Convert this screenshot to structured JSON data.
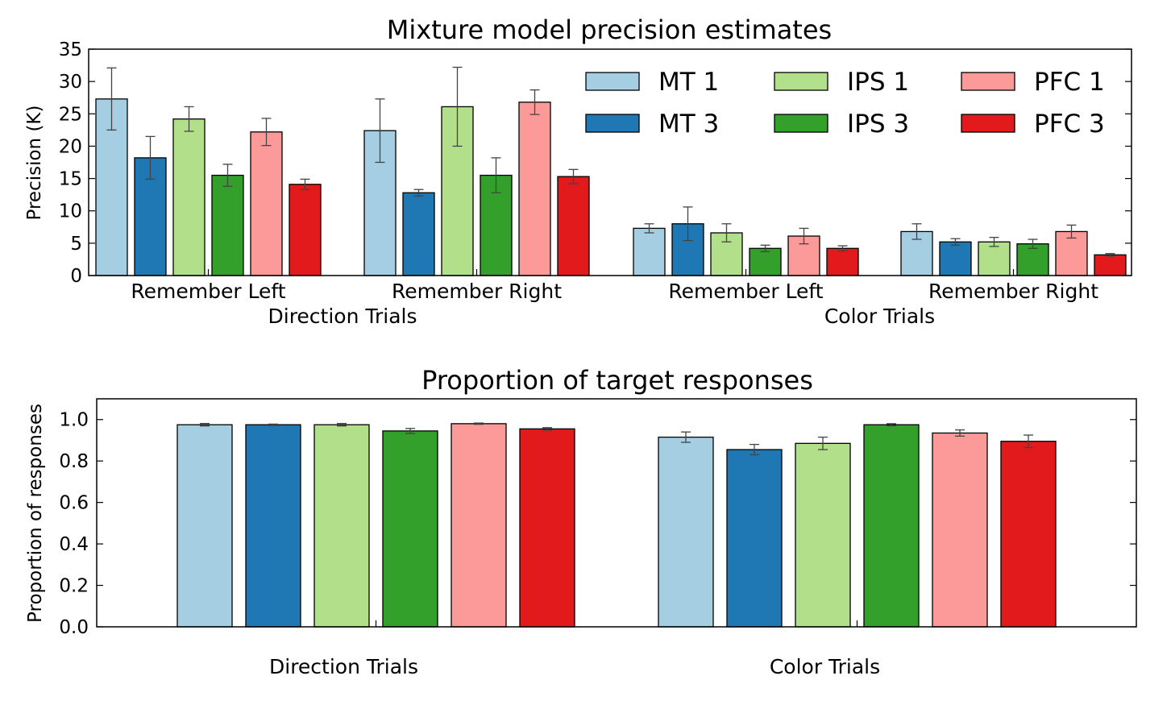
{
  "colors": {
    "MT 1": "#a6cee3",
    "MT 3": "#1f78b4",
    "IPS 1": "#b2df8a",
    "IPS 3": "#33a02c",
    "PFC 1": "#fb9a99",
    "PFC 3": "#e31a1c",
    "errorbar": "#444444"
  },
  "chart_data": [
    {
      "type": "bar",
      "title": "Mixture model precision estimates",
      "xlabel": "",
      "ylabel": "Precision (K)",
      "ylim": [
        0,
        35
      ],
      "yticks": [
        "0",
        "5",
        "10",
        "15",
        "20",
        "25",
        "30",
        "35"
      ],
      "legend": {
        "placement": "top-right",
        "columns": 3
      },
      "groups": [
        {
          "label": "Direction Trials",
          "subgroups": [
            "Remember Left",
            "Remember Right"
          ]
        },
        {
          "label": "Color Trials",
          "subgroups": [
            "Remember Left",
            "Remember Right"
          ]
        }
      ],
      "categories": [
        "Remember Left",
        "Remember Right",
        "Remember Left",
        "Remember Right"
      ],
      "series": [
        {
          "name": "MT 1",
          "values": [
            27.3,
            22.4,
            7.3,
            6.8
          ],
          "errors": [
            4.8,
            4.9,
            0.7,
            1.2
          ]
        },
        {
          "name": "MT 3",
          "values": [
            18.2,
            12.8,
            8.0,
            5.2
          ],
          "errors": [
            3.3,
            0.5,
            2.6,
            0.5
          ]
        },
        {
          "name": "IPS 1",
          "values": [
            24.2,
            26.1,
            6.6,
            5.2
          ],
          "errors": [
            1.9,
            6.1,
            1.4,
            0.7
          ]
        },
        {
          "name": "IPS 3",
          "values": [
            15.5,
            15.5,
            4.2,
            4.9
          ],
          "errors": [
            1.7,
            2.7,
            0.5,
            0.7
          ]
        },
        {
          "name": "PFC 1",
          "values": [
            22.2,
            26.8,
            6.1,
            6.8
          ],
          "errors": [
            2.1,
            1.9,
            1.2,
            1.0
          ]
        },
        {
          "name": "PFC 3",
          "values": [
            14.1,
            15.3,
            4.2,
            3.2
          ],
          "errors": [
            0.8,
            1.1,
            0.4,
            0.2
          ]
        }
      ]
    },
    {
      "type": "bar",
      "title": "Proportion of target responses",
      "xlabel": "",
      "ylabel": "Proportion of responses",
      "ylim": [
        0,
        1.1
      ],
      "yticks": [
        "0.0",
        "0.2",
        "0.4",
        "0.6",
        "0.8",
        "1.0"
      ],
      "categories": [
        "Direction Trials",
        "Color Trials"
      ],
      "series": [
        {
          "name": "MT 1",
          "values": [
            0.975,
            0.915
          ],
          "errors": [
            0.006,
            0.025
          ]
        },
        {
          "name": "MT 3",
          "values": [
            0.975,
            0.855
          ],
          "errors": [
            0.003,
            0.025
          ]
        },
        {
          "name": "IPS 1",
          "values": [
            0.975,
            0.885
          ],
          "errors": [
            0.006,
            0.03
          ]
        },
        {
          "name": "IPS 3",
          "values": [
            0.945,
            0.975
          ],
          "errors": [
            0.012,
            0.005
          ]
        },
        {
          "name": "PFC 1",
          "values": [
            0.98,
            0.935
          ],
          "errors": [
            0.003,
            0.015
          ]
        },
        {
          "name": "PFC 3",
          "values": [
            0.955,
            0.895
          ],
          "errors": [
            0.006,
            0.03
          ]
        }
      ]
    }
  ]
}
